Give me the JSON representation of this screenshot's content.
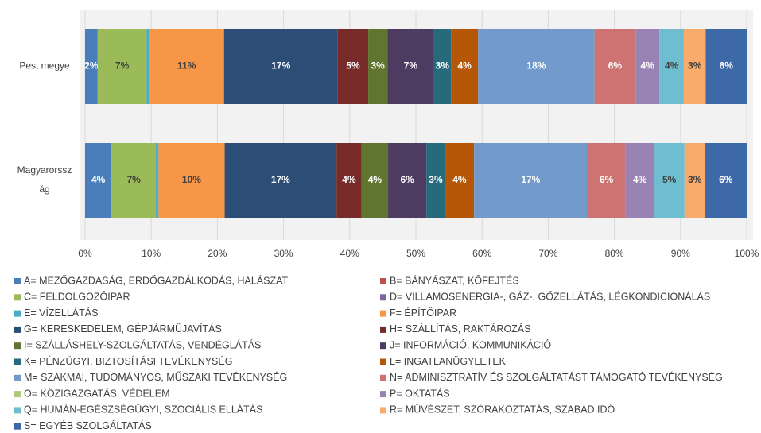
{
  "chart_data": {
    "type": "stacked_barh",
    "categories": [
      "Pest megye",
      "Magyarorsszág"
    ],
    "series": [
      {
        "name": "A= MEZŐGAZDASÁG, ERDŐGAZDÁLKODÁS, HALÁSZAT",
        "color": "#4a7ebb",
        "values": [
          1.9,
          4.0
        ],
        "value_labels": [
          "2%",
          "4%"
        ]
      },
      {
        "name": "B= BÁNYÁSZAT, KŐFEJTÉS",
        "color": "#c0504d",
        "values": [
          0,
          0
        ],
        "value_labels": [
          null,
          null
        ]
      },
      {
        "name": "C= FELDOLGOZÓIPAR",
        "color": "#9bbb59",
        "values": [
          7.4,
          6.7
        ],
        "value_labels": [
          "7%",
          "7%"
        ]
      },
      {
        "name": "D= VILLAMOSENERGIA-, GÁZ-, GŐZELLÁTÁS, LÉGKONDICIONÁLÁS",
        "color": "#8064a2",
        "values": [
          0,
          0
        ],
        "value_labels": [
          null,
          null
        ]
      },
      {
        "name": "E= VÍZELLÁTÁS",
        "color": "#4bacc6",
        "values": [
          0.4,
          0.4
        ],
        "value_labels": [
          null,
          null
        ]
      },
      {
        "name": "F= ÉPÍTŐIPAR",
        "color": "#f79646",
        "values": [
          11.3,
          10.0
        ],
        "value_labels": [
          "11%",
          "10%"
        ]
      },
      {
        "name": "G= KERESKEDELEM, GÉPJÁRMŰJAVÍTÁS",
        "color": "#2c4d75",
        "values": [
          17.2,
          16.9
        ],
        "value_labels": [
          "17%",
          "17%"
        ]
      },
      {
        "name": "H= SZÁLLÍTÁS, RAKTÁROZÁS",
        "color": "#772c2a",
        "values": [
          4.6,
          3.8
        ],
        "value_labels": [
          "5%",
          "4%"
        ]
      },
      {
        "name": "I= SZÁLLÁSHELY-SZOLGÁLTATÁS, VENDÉGLÁTÁS",
        "color": "#5f7530",
        "values": [
          2.9,
          4.0
        ],
        "value_labels": [
          "3%",
          "4%"
        ]
      },
      {
        "name": "J= INFORMÁCIÓ, KOMMUNIKÁCIÓ",
        "color": "#4d3b62",
        "values": [
          7.0,
          5.8
        ],
        "value_labels": [
          "7%",
          "6%"
        ]
      },
      {
        "name": "K= PÉNZÜGYI, BIZTOSÍTÁSI TEVÉKENYSÉG",
        "color": "#276a7c",
        "values": [
          2.6,
          2.8
        ],
        "value_labels": [
          "3%",
          "3%"
        ]
      },
      {
        "name": "L= INGATLANÜGYLETEK",
        "color": "#b65708",
        "values": [
          4.1,
          4.4
        ],
        "value_labels": [
          "4%",
          "4%"
        ]
      },
      {
        "name": "M= SZAKMAI, TUDOMÁNYOS, MŰSZAKI TEVÉKENYSÉG",
        "color": "#729aca",
        "values": [
          17.6,
          17.1
        ],
        "value_labels": [
          "18%",
          "17%"
        ]
      },
      {
        "name": "N= ADMINISZTRATÍV ÉS SZOLGÁLTATÁST TÁMOGATÓ TEVÉKENYSÉG",
        "color": "#cd7371",
        "values": [
          6.2,
          5.8
        ],
        "value_labels": [
          "6%",
          "6%"
        ]
      },
      {
        "name": "O= KÖZIGAZGATÁS, VÉDELEM",
        "color": "#afc97a",
        "values": [
          0,
          0
        ],
        "value_labels": [
          null,
          null
        ]
      },
      {
        "name": "P= OKTATÁS",
        "color": "#9983b5",
        "values": [
          3.6,
          4.3
        ],
        "value_labels": [
          "4%",
          "4%"
        ]
      },
      {
        "name": "Q= HUMÁN-EGÉSZSÉGÜGYI, SZOCIÁLIS ELLÁTÁS",
        "color": "#6fbdd1",
        "values": [
          3.7,
          4.6
        ],
        "value_labels": [
          "4%",
          "5%"
        ]
      },
      {
        "name": "R= MŰVÉSZET, SZÓRAKOZTATÁS, SZABAD IDŐ",
        "color": "#f9ab6b",
        "values": [
          3.3,
          3.1
        ],
        "value_labels": [
          "3%",
          "3%"
        ]
      },
      {
        "name": "S= EGYÉB SZOLGÁLTATÁS",
        "color": "#3d6aa6",
        "values": [
          6.2,
          6.3
        ],
        "value_labels": [
          "6%",
          "6%"
        ]
      }
    ],
    "xlim": [
      0,
      100
    ],
    "xticks": [
      {
        "value": 0,
        "label": "0%"
      },
      {
        "value": 10,
        "label": "10%"
      },
      {
        "value": 20,
        "label": "20%"
      },
      {
        "value": 30,
        "label": "30%"
      },
      {
        "value": 40,
        "label": "40%"
      },
      {
        "value": 50,
        "label": "50%"
      },
      {
        "value": 60,
        "label": "60%"
      },
      {
        "value": 70,
        "label": "70%"
      },
      {
        "value": 80,
        "label": "80%"
      },
      {
        "value": 90,
        "label": "90%"
      },
      {
        "value": 100,
        "label": "100%"
      }
    ],
    "grid": true,
    "legend": "bottom"
  }
}
